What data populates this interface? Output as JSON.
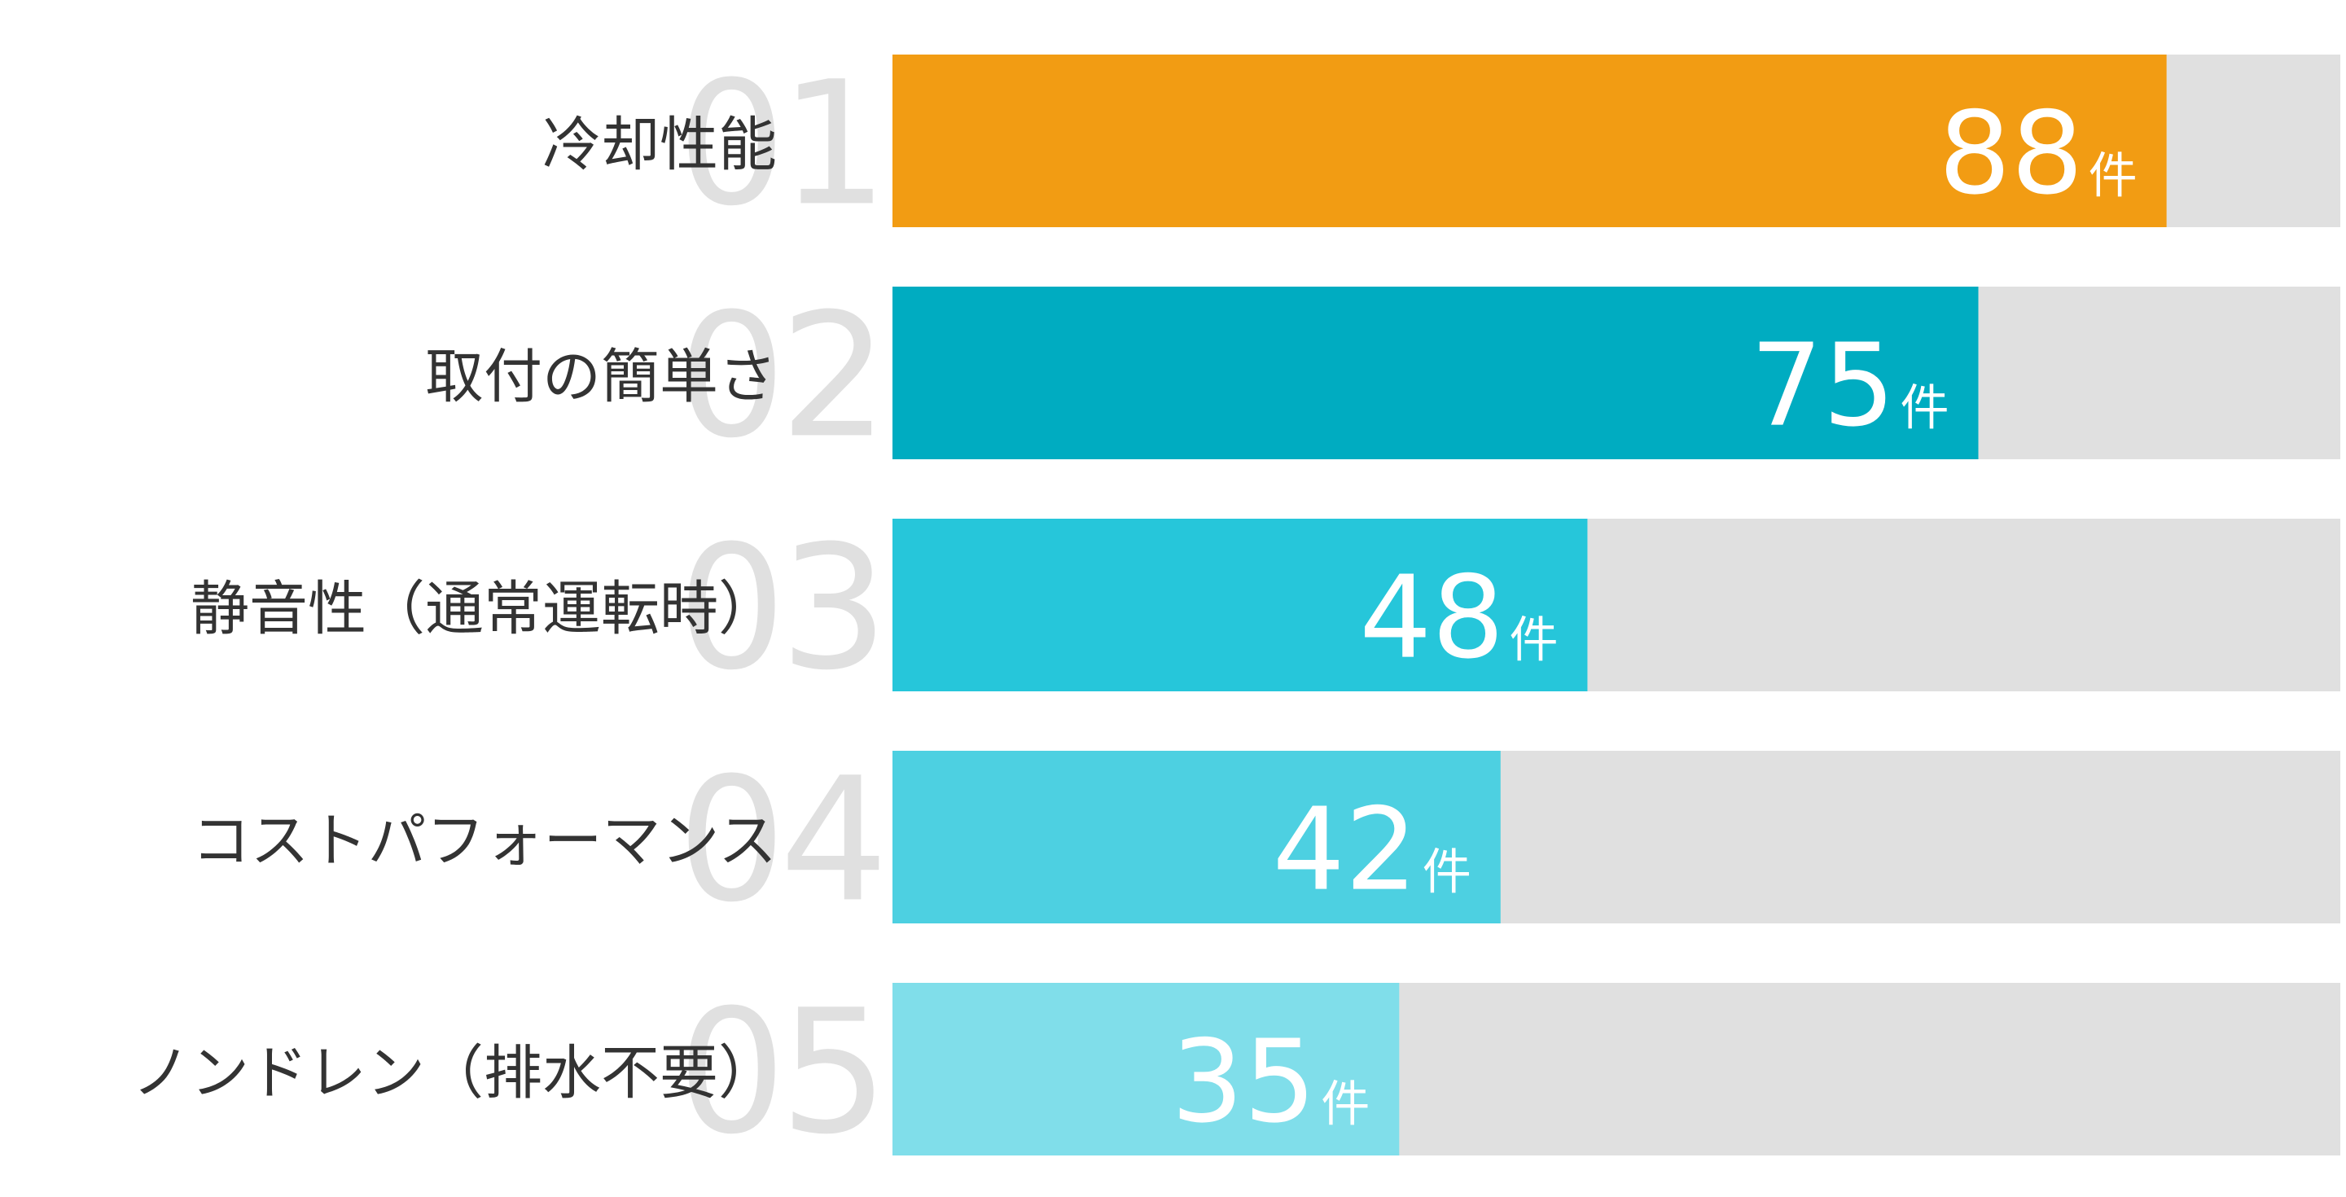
{
  "chart_data": {
    "type": "bar",
    "categories": [
      "冷却性能",
      "取付の簡単さ",
      "静音性（通常運転時）",
      "コストパフォーマンス",
      "ノンドレン（排水不要）"
    ],
    "ranks": [
      "01",
      "02",
      "03",
      "04",
      "05"
    ],
    "values": [
      88,
      75,
      48,
      42,
      35
    ],
    "unit": "件",
    "colors": [
      "#f29c13",
      "#00acc1",
      "#26c6da",
      "#4dd0e1",
      "#80deea"
    ],
    "track_color": "#e0e0e0",
    "xlim": [
      0,
      100
    ]
  }
}
